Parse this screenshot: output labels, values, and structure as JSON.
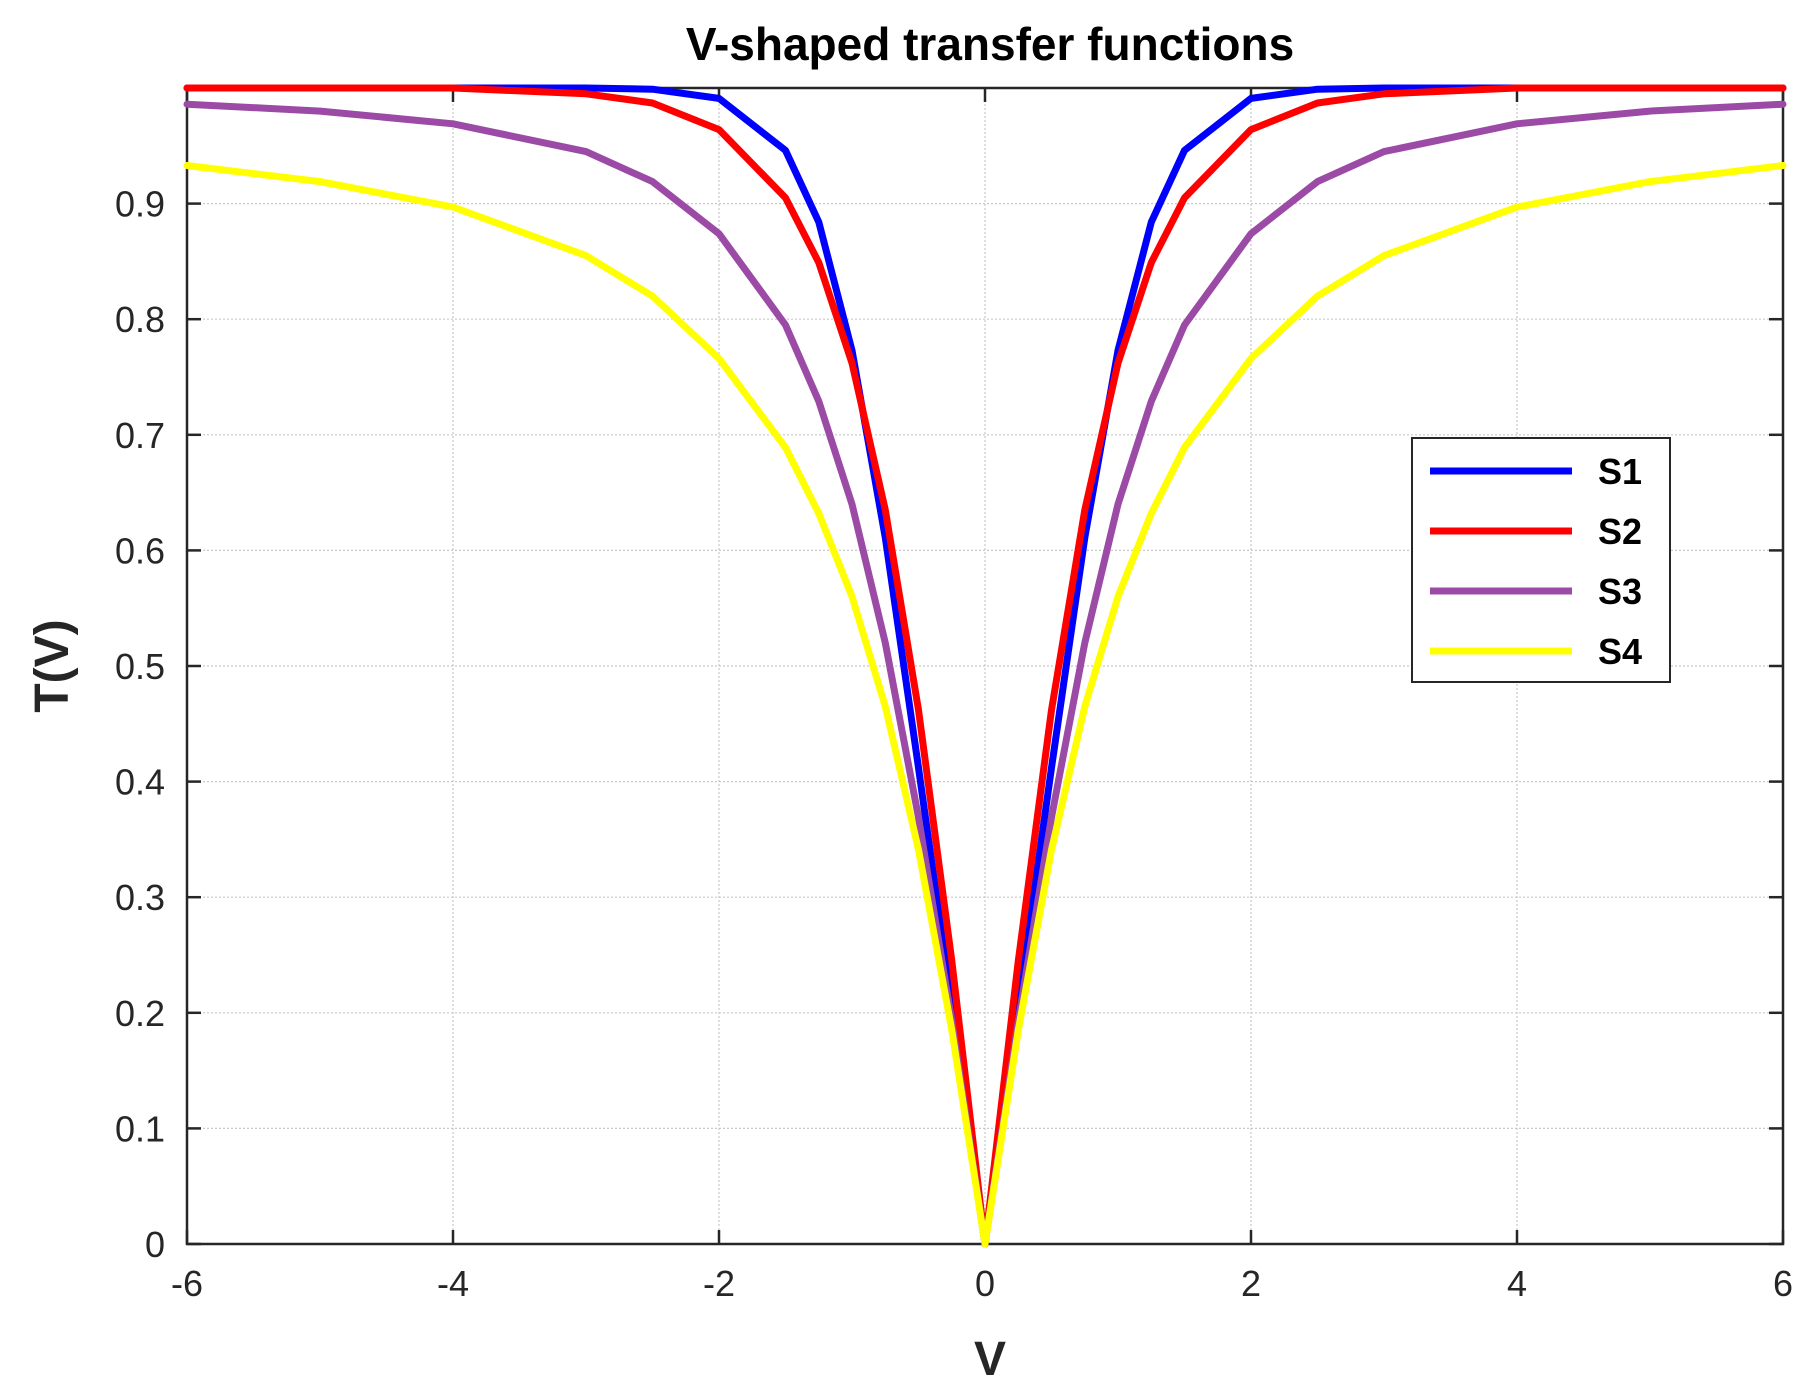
{
  "chart_data": {
    "type": "line",
    "title": "V-shaped transfer functions",
    "xlabel": "V",
    "ylabel": "T(V)",
    "xlim": [
      -6,
      6
    ],
    "ylim": [
      0,
      1
    ],
    "xticks": [
      -6,
      -4,
      -2,
      0,
      2,
      4,
      6
    ],
    "yticks": [
      0,
      0.1,
      0.2,
      0.3,
      0.4,
      0.5,
      0.6,
      0.7,
      0.8,
      0.9
    ],
    "grid": true,
    "legend_position": "right",
    "x": [
      -6,
      -5,
      -4,
      -3,
      -2.5,
      -2,
      -1.5,
      -1.25,
      -1,
      -0.75,
      -0.5,
      -0.25,
      0,
      0.25,
      0.5,
      0.75,
      1,
      1.25,
      1.5,
      2,
      2.5,
      3,
      4,
      5,
      6
    ],
    "series": [
      {
        "name": "S1",
        "color": "#0000ff",
        "values": [
          1.0,
          1.0,
          1.0,
          1.0,
          0.999,
          0.991,
          0.946,
          0.884,
          0.773,
          0.611,
          0.412,
          0.206,
          0.0,
          0.206,
          0.412,
          0.611,
          0.773,
          0.884,
          0.946,
          0.991,
          0.999,
          1.0,
          1.0,
          1.0,
          1.0
        ]
      },
      {
        "name": "S2",
        "color": "#ff0000",
        "values": [
          1.0,
          1.0,
          1.0,
          0.995,
          0.987,
          0.964,
          0.905,
          0.849,
          0.762,
          0.635,
          0.462,
          0.245,
          0.0,
          0.245,
          0.462,
          0.635,
          0.762,
          0.849,
          0.905,
          0.964,
          0.987,
          0.995,
          1.0,
          1.0,
          1.0
        ]
      },
      {
        "name": "S3",
        "color": "#9b4aa6",
        "values": [
          0.986,
          0.98,
          0.969,
          0.945,
          0.919,
          0.874,
          0.795,
          0.729,
          0.64,
          0.52,
          0.369,
          0.193,
          0.0,
          0.193,
          0.369,
          0.52,
          0.64,
          0.729,
          0.795,
          0.874,
          0.919,
          0.945,
          0.969,
          0.98,
          0.986
        ]
      },
      {
        "name": "S4",
        "color": "#ffff00",
        "values": [
          0.933,
          0.919,
          0.897,
          0.855,
          0.82,
          0.766,
          0.689,
          0.632,
          0.56,
          0.465,
          0.341,
          0.185,
          0.0,
          0.185,
          0.341,
          0.465,
          0.56,
          0.632,
          0.689,
          0.766,
          0.82,
          0.855,
          0.897,
          0.919,
          0.933
        ]
      }
    ]
  }
}
